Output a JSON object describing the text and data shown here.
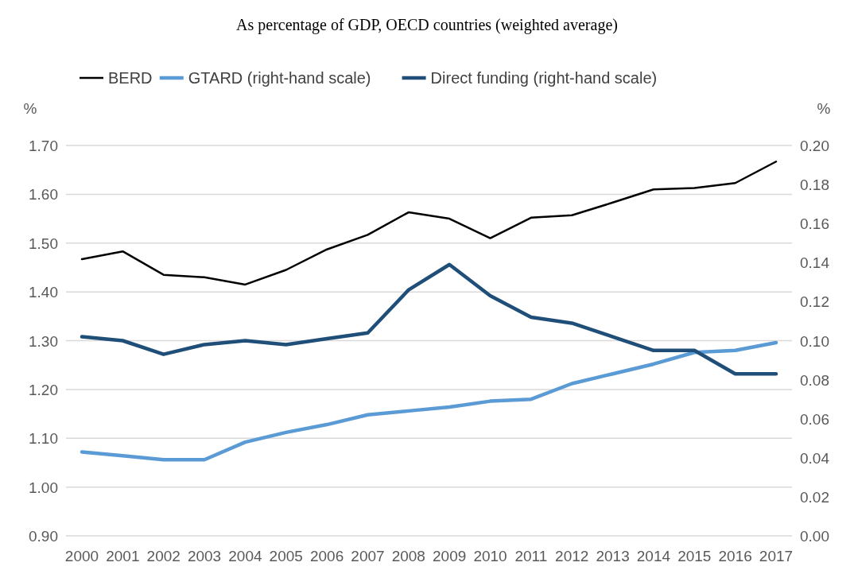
{
  "chart_data": {
    "type": "line",
    "title": "As percentage of GDP, OECD countries (weighted average)",
    "ylabel": "%",
    "y2label": "%",
    "categories": [
      "2000",
      "2001",
      "2002",
      "2003",
      "2004",
      "2005",
      "2006",
      "2007",
      "2008",
      "2009",
      "2010",
      "2011",
      "2012",
      "2013",
      "2014",
      "2015",
      "2016",
      "2017"
    ],
    "series": [
      {
        "name": "BERD",
        "color": "#000000",
        "values": [
          1.467,
          1.483,
          1.435,
          1.43,
          1.415,
          1.445,
          1.487,
          1.517,
          1.563,
          1.55,
          1.51,
          1.552,
          1.557,
          1.583,
          1.61,
          1.613,
          1.623,
          1.667
        ]
      },
      {
        "name": "GTARD (right-hand scale)",
        "color": "#5b9bd5",
        "axis": "y2",
        "values": [
          0.043,
          0.041,
          0.039,
          0.039,
          0.048,
          0.053,
          0.057,
          0.062,
          0.064,
          0.066,
          0.069,
          0.07,
          0.078,
          0.083,
          0.088,
          0.094,
          0.095,
          0.099
        ]
      },
      {
        "name": "Direct funding (right-hand scale)",
        "color": "#1f4e79",
        "axis": "y2",
        "values": [
          0.102,
          0.1,
          0.093,
          0.098,
          0.1,
          0.098,
          0.101,
          0.104,
          0.126,
          0.139,
          0.123,
          0.112,
          0.109,
          0.102,
          0.095,
          0.095,
          0.083,
          0.083
        ]
      }
    ],
    "ylim": [
      0.9,
      1.7
    ],
    "yticks": [
      {
        "value": 0.9,
        "label": "0.90"
      },
      {
        "value": 1.0,
        "label": "1.00"
      },
      {
        "value": 1.1,
        "label": "1.10"
      },
      {
        "value": 1.2,
        "label": "1.20"
      },
      {
        "value": 1.3,
        "label": "1.30"
      },
      {
        "value": 1.4,
        "label": "1.40"
      },
      {
        "value": 1.5,
        "label": "1.50"
      },
      {
        "value": 1.6,
        "label": "1.60"
      },
      {
        "value": 1.7,
        "label": "1.70"
      }
    ],
    "y2lim": [
      0,
      0.2
    ],
    "y2ticks": [
      {
        "value": 0,
        "label": "0.00"
      },
      {
        "value": 0.02,
        "label": "0.02"
      },
      {
        "value": 0.04,
        "label": "0.04"
      },
      {
        "value": 0.06,
        "label": "0.06"
      },
      {
        "value": 0.08,
        "label": "0.08"
      },
      {
        "value": 0.1,
        "label": "0.10"
      },
      {
        "value": 0.12,
        "label": "0.12"
      },
      {
        "value": 0.14,
        "label": "0.14"
      },
      {
        "value": 0.16,
        "label": "0.16"
      },
      {
        "value": 0.18,
        "label": "0.18"
      },
      {
        "value": 0.2,
        "label": "0.20"
      }
    ],
    "grid": "y",
    "legend": "top"
  }
}
